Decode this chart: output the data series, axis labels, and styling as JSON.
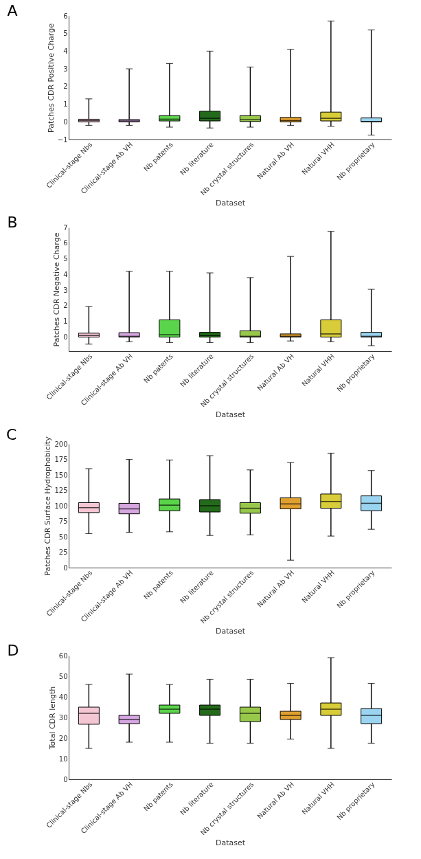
{
  "chart_data": [
    {
      "type": "box",
      "title": "A",
      "xlabel": "Dataset",
      "ylabel": "Patches CDR Positive Charge",
      "categories": [
        "Clinical-stage Nbs",
        "Clinical-stage Ab VH",
        "Nb patents",
        "Nb literature",
        "Nb crystal structures",
        "Natural Ab VH",
        "Natural VHH",
        "Nb proprietary"
      ],
      "colors": [
        "#f4c6d4",
        "#d5a6e0",
        "#5ad44a",
        "#236b1b",
        "#98c84a",
        "#e0a030",
        "#d8cc38",
        "#9ad4f0"
      ],
      "boxes": [
        {
          "low": -0.2,
          "q1": 0.0,
          "median": 0.07,
          "q3": 0.15,
          "high": 1.3
        },
        {
          "low": -0.2,
          "q1": 0.0,
          "median": 0.05,
          "q3": 0.13,
          "high": 3.0
        },
        {
          "low": -0.3,
          "q1": 0.05,
          "median": 0.15,
          "q3": 0.35,
          "high": 3.3
        },
        {
          "low": -0.35,
          "q1": 0.05,
          "median": 0.2,
          "q3": 0.6,
          "high": 4.0
        },
        {
          "low": -0.3,
          "q1": 0.02,
          "median": 0.12,
          "q3": 0.35,
          "high": 3.1
        },
        {
          "low": -0.2,
          "q1": 0.0,
          "median": 0.07,
          "q3": 0.25,
          "high": 4.1
        },
        {
          "low": -0.25,
          "q1": 0.05,
          "median": 0.2,
          "q3": 0.55,
          "high": 5.7
        },
        {
          "low": -0.75,
          "q1": 0.0,
          "median": 0.02,
          "q3": 0.22,
          "high": 5.2
        }
      ],
      "ylim": [
        -1,
        6
      ],
      "yticks": [
        -1,
        0,
        1,
        2,
        3,
        4,
        5,
        6
      ],
      "grid": false
    },
    {
      "type": "box",
      "title": "B",
      "xlabel": "Dataset",
      "ylabel": "Patches CDR Negative Charge",
      "categories": [
        "Clinical-stage Nbs",
        "Clinical-stage Ab VH",
        "Nb patents",
        "Nb literature",
        "Nb crystal structures",
        "Natural Ab VH",
        "Natural VHH",
        "Nb proprietary"
      ],
      "colors": [
        "#f4c6d4",
        "#d5a6e0",
        "#5ad44a",
        "#236b1b",
        "#98c84a",
        "#e0a030",
        "#d8cc38",
        "#9ad4f0"
      ],
      "boxes": [
        {
          "low": -0.45,
          "q1": 0.0,
          "median": 0.1,
          "q3": 0.25,
          "high": 1.95
        },
        {
          "low": -0.3,
          "q1": 0.0,
          "median": 0.05,
          "q3": 0.28,
          "high": 4.2
        },
        {
          "low": -0.35,
          "q1": 0.0,
          "median": 0.15,
          "q3": 1.1,
          "high": 4.2
        },
        {
          "low": -0.35,
          "q1": 0.0,
          "median": 0.1,
          "q3": 0.3,
          "high": 4.1
        },
        {
          "low": -0.35,
          "q1": 0.0,
          "median": 0.05,
          "q3": 0.4,
          "high": 3.8
        },
        {
          "low": -0.25,
          "q1": 0.0,
          "median": 0.05,
          "q3": 0.2,
          "high": 5.15
        },
        {
          "low": -0.3,
          "q1": 0.0,
          "median": 0.2,
          "q3": 1.1,
          "high": 6.75
        },
        {
          "low": -0.55,
          "q1": 0.0,
          "median": 0.05,
          "q3": 0.3,
          "high": 3.05
        }
      ],
      "ylim": [
        -0.9,
        7
      ],
      "yticks": [
        0,
        1,
        2,
        3,
        4,
        5,
        6,
        7
      ],
      "grid": false
    },
    {
      "type": "box",
      "title": "C",
      "xlabel": "Dataset",
      "ylabel": "Patches CDR Surface Hydrophobicity",
      "categories": [
        "Clinical-stage Nbs",
        "Clinical-stage Ab VH",
        "Nb patents",
        "Nb literature",
        "Nb crystal structures",
        "Natural Ab VH",
        "Natural VHH",
        "Nb proprietary"
      ],
      "colors": [
        "#f4c6d4",
        "#d5a6e0",
        "#5ad44a",
        "#236b1b",
        "#98c84a",
        "#e0a030",
        "#d8cc38",
        "#9ad4f0"
      ],
      "boxes": [
        {
          "low": 55,
          "q1": 89,
          "median": 97,
          "q3": 105,
          "high": 160
        },
        {
          "low": 57,
          "q1": 87,
          "median": 95,
          "q3": 104,
          "high": 175
        },
        {
          "low": 58,
          "q1": 92,
          "median": 101,
          "q3": 111,
          "high": 174
        },
        {
          "low": 52,
          "q1": 90,
          "median": 100,
          "q3": 110,
          "high": 181
        },
        {
          "low": 53,
          "q1": 88,
          "median": 96,
          "q3": 105,
          "high": 158
        },
        {
          "low": 12,
          "q1": 95,
          "median": 103,
          "q3": 113,
          "high": 170
        },
        {
          "low": 51,
          "q1": 96,
          "median": 107,
          "q3": 119,
          "high": 185
        },
        {
          "low": 62,
          "q1": 92,
          "median": 104,
          "q3": 116,
          "high": 157
        }
      ],
      "ylim": [
        0,
        200
      ],
      "yticks": [
        0,
        25,
        50,
        75,
        100,
        125,
        150,
        175,
        200
      ],
      "grid": false
    },
    {
      "type": "box",
      "title": "D",
      "xlabel": "Dataset",
      "ylabel": "Total CDR length",
      "categories": [
        "Clinical-stage Nbs",
        "Clinical-stage Ab VH",
        "Nb patents",
        "Nb literature",
        "Nb crystal structures",
        "Natural Ab VH",
        "Natural VHH",
        "Nb proprietary"
      ],
      "colors": [
        "#f4c6d4",
        "#d5a6e0",
        "#5ad44a",
        "#236b1b",
        "#98c84a",
        "#e0a030",
        "#d8cc38",
        "#9ad4f0"
      ],
      "boxes": [
        {
          "low": 15,
          "q1": 26.7,
          "median": 32,
          "q3": 35,
          "high": 46
        },
        {
          "low": 18,
          "q1": 27,
          "median": 29,
          "q3": 31,
          "high": 51
        },
        {
          "low": 18,
          "q1": 32,
          "median": 34,
          "q3": 36,
          "high": 46
        },
        {
          "low": 17.5,
          "q1": 31,
          "median": 34,
          "q3": 36,
          "high": 48.5
        },
        {
          "low": 17.5,
          "q1": 28,
          "median": 32,
          "q3": 35,
          "high": 48.5
        },
        {
          "low": 19.5,
          "q1": 29,
          "median": 31,
          "q3": 33,
          "high": 46.5
        },
        {
          "low": 15,
          "q1": 31,
          "median": 34,
          "q3": 37,
          "high": 59
        },
        {
          "low": 17.5,
          "q1": 27,
          "median": 31,
          "q3": 34.3,
          "high": 46.5
        }
      ],
      "ylim": [
        0,
        60
      ],
      "yticks": [
        0,
        10,
        20,
        30,
        40,
        50,
        60
      ],
      "grid": false
    }
  ]
}
